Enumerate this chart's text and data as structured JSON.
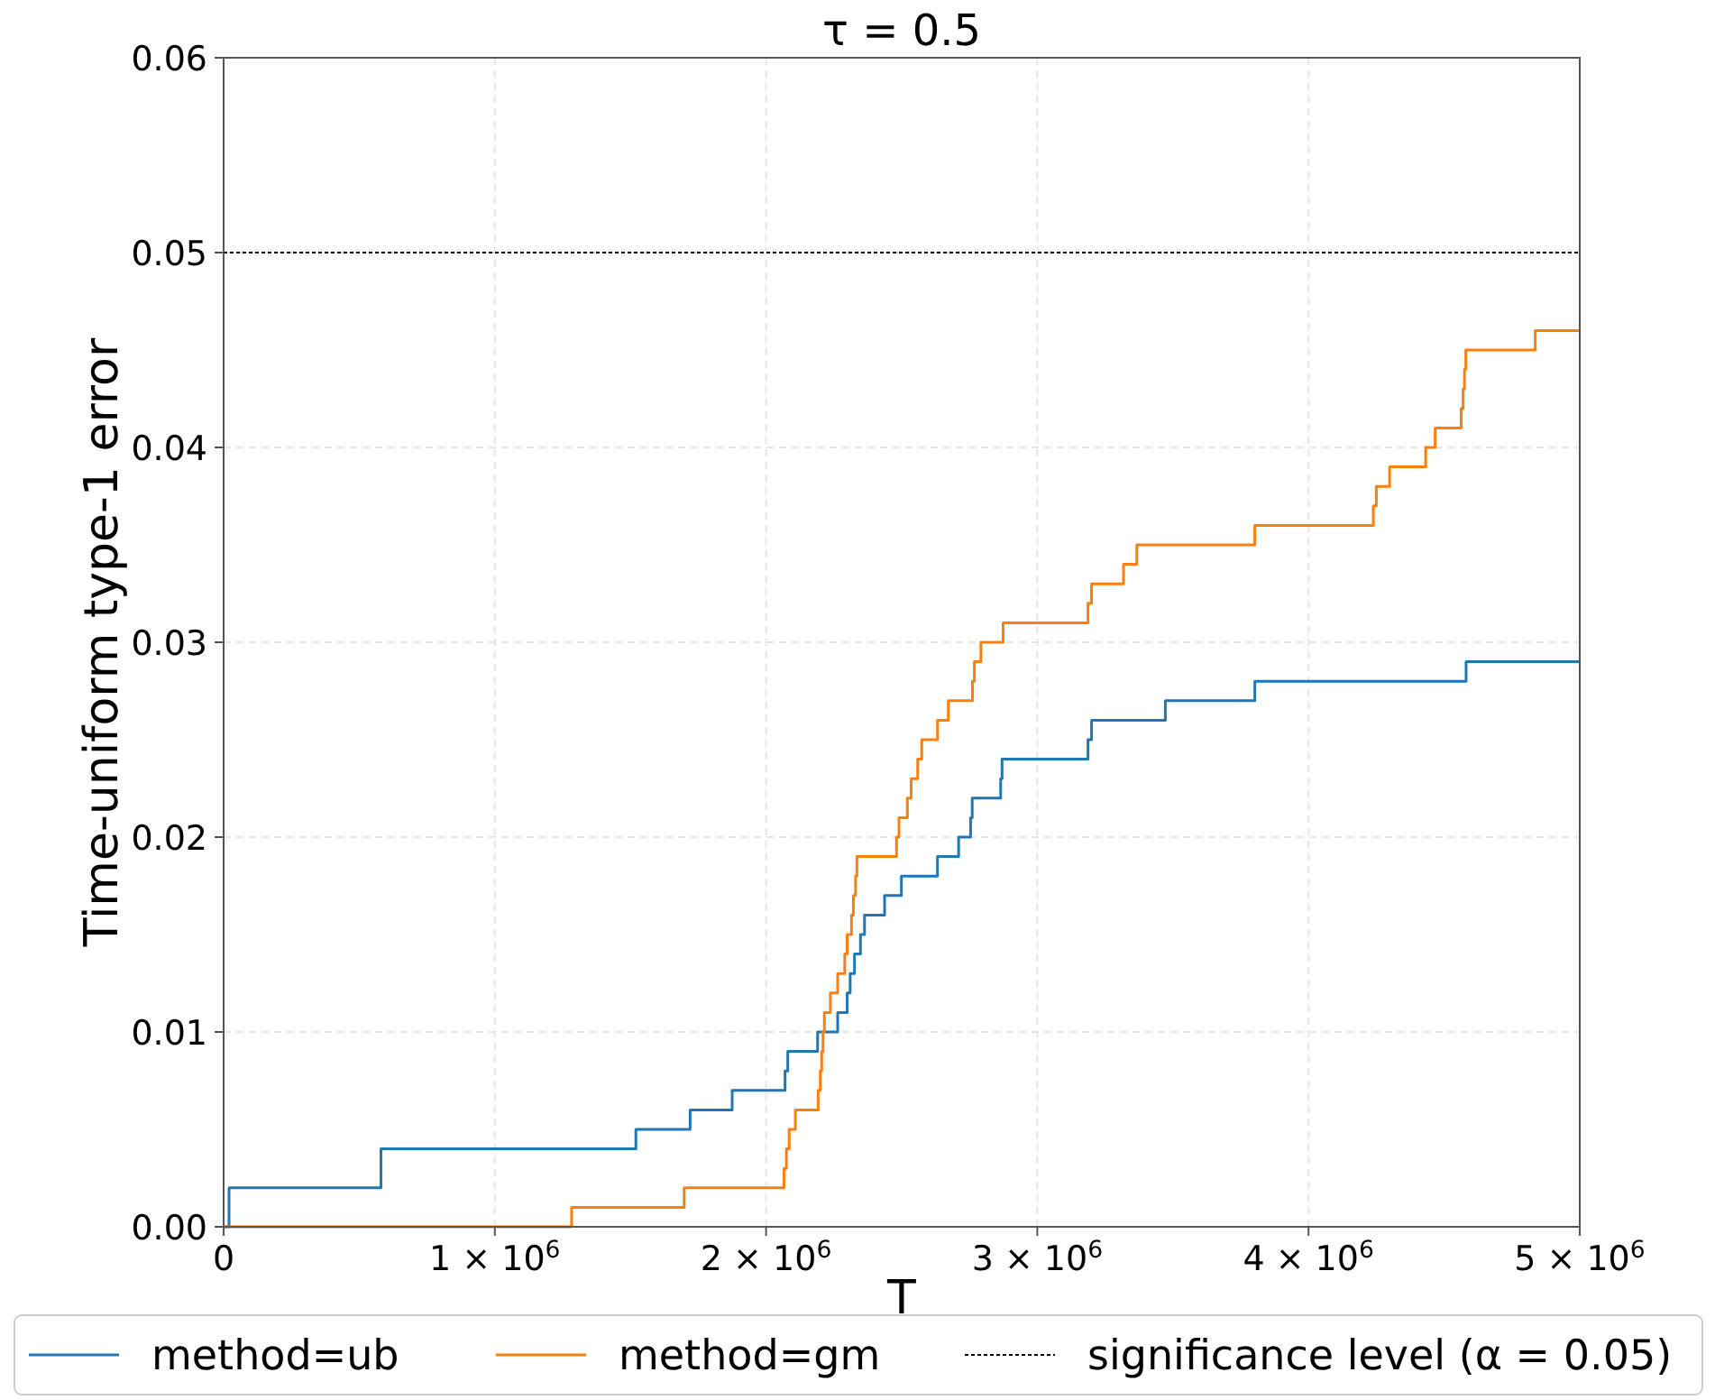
{
  "chart_data": {
    "type": "step",
    "title": "τ = 0.5",
    "xlabel": "T",
    "ylabel": "Time-uniform type-1 error",
    "xlim": [
      0,
      5000000
    ],
    "ylim": [
      0,
      0.06
    ],
    "xticks": [
      0,
      {
        "value": 1000000,
        "label": "1 × 10$^{6}$"
      },
      {
        "value": 2000000,
        "label": "2 × 10$^{6}$"
      },
      {
        "value": 3000000,
        "label": "3 × 10$^{6}$"
      },
      {
        "value": 4000000,
        "label": "4 × 10$^{6}$"
      },
      {
        "value": 5000000,
        "label": "5 × 10$^{6}$"
      }
    ],
    "yticks": [
      {
        "value": 0,
        "label": "0.00"
      },
      {
        "value": 0.01,
        "label": "0.01"
      },
      {
        "value": 0.02,
        "label": "0.02"
      },
      {
        "value": 0.03,
        "label": "0.03"
      },
      {
        "value": 0.04,
        "label": "0.04"
      },
      {
        "value": 0.05,
        "label": "0.05"
      },
      {
        "value": 0.06,
        "label": "0.06"
      }
    ],
    "grid": true,
    "legend": "bottom",
    "line_style": "solid",
    "series": [
      {
        "name": "method=ub",
        "color": "#1f77b4",
        "x": [
          0,
          20000,
          580000,
          1520000,
          1720000,
          1875000,
          2070000,
          2080000,
          2190000,
          2264000,
          2299000,
          2310000,
          2326000,
          2348000,
          2363000,
          2437000,
          2499000,
          2632000,
          2710000,
          2754000,
          2760000,
          2865000,
          2870000,
          3187000,
          3200000,
          3472000,
          3802000,
          4581000,
          5000000
        ],
        "values": [
          0,
          0.002,
          0.004,
          0.005,
          0.006,
          0.007,
          0.008,
          0.009,
          0.01,
          0.011,
          0.012,
          0.013,
          0.014,
          0.015,
          0.016,
          0.017,
          0.018,
          0.019,
          0.02,
          0.021,
          0.022,
          0.023,
          0.024,
          0.025,
          0.026,
          0.027,
          0.028,
          0.029,
          0.029
        ]
      },
      {
        "name": "method=gm",
        "color": "#ff7f0e",
        "x": [
          0,
          1283000,
          1698000,
          2066000,
          2075000,
          2085000,
          2108000,
          2192000,
          2200000,
          2205000,
          2210000,
          2215000,
          2237000,
          2264000,
          2290000,
          2299000,
          2315000,
          2322000,
          2330000,
          2335000,
          2481000,
          2490000,
          2521000,
          2535000,
          2559000,
          2574000,
          2632000,
          2672000,
          2761000,
          2768000,
          2792000,
          2874000,
          3187000,
          3200000,
          3318000,
          3367000,
          3802000,
          4239000,
          4250000,
          4299000,
          4432000,
          4467000,
          4563000,
          4570000,
          4575000,
          4580000,
          4836000,
          5000000
        ],
        "values": [
          0,
          0.001,
          0.002,
          0.003,
          0.004,
          0.005,
          0.006,
          0.007,
          0.008,
          0.009,
          0.01,
          0.011,
          0.012,
          0.013,
          0.014,
          0.015,
          0.016,
          0.017,
          0.018,
          0.019,
          0.02,
          0.021,
          0.022,
          0.023,
          0.024,
          0.025,
          0.026,
          0.027,
          0.028,
          0.029,
          0.03,
          0.031,
          0.032,
          0.033,
          0.034,
          0.035,
          0.036,
          0.037,
          0.038,
          0.039,
          0.04,
          0.041,
          0.042,
          0.043,
          0.044,
          0.045,
          0.046,
          0.046
        ]
      }
    ],
    "ref_lines": [
      {
        "axis": "y",
        "value": 0.05,
        "label": "significance level (α = 0.05)",
        "color": "#000000",
        "line_style": "dotted"
      }
    ]
  }
}
